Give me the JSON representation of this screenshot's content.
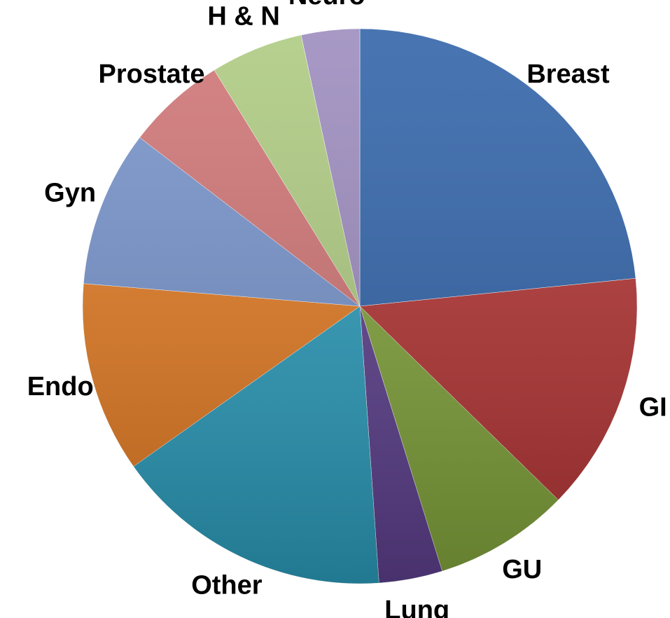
{
  "chart_data": {
    "type": "pie",
    "categories": [
      "Breast",
      "GI",
      "GU",
      "Lung",
      "Other",
      "Endo",
      "Gyn",
      "Prostate",
      "H & N",
      "Neuro"
    ],
    "values": [
      23.4,
      13.9,
      7.9,
      3.7,
      16.3,
      11.1,
      9.1,
      5.8,
      5.4,
      3.4
    ],
    "colors": [
      "#2f62a8",
      "#b23333",
      "#80a23a",
      "#5c3f8c",
      "#2b9bba",
      "#e27a22",
      "#7592ca",
      "#cf7373",
      "#adca80",
      "#9b8abd"
    ]
  }
}
